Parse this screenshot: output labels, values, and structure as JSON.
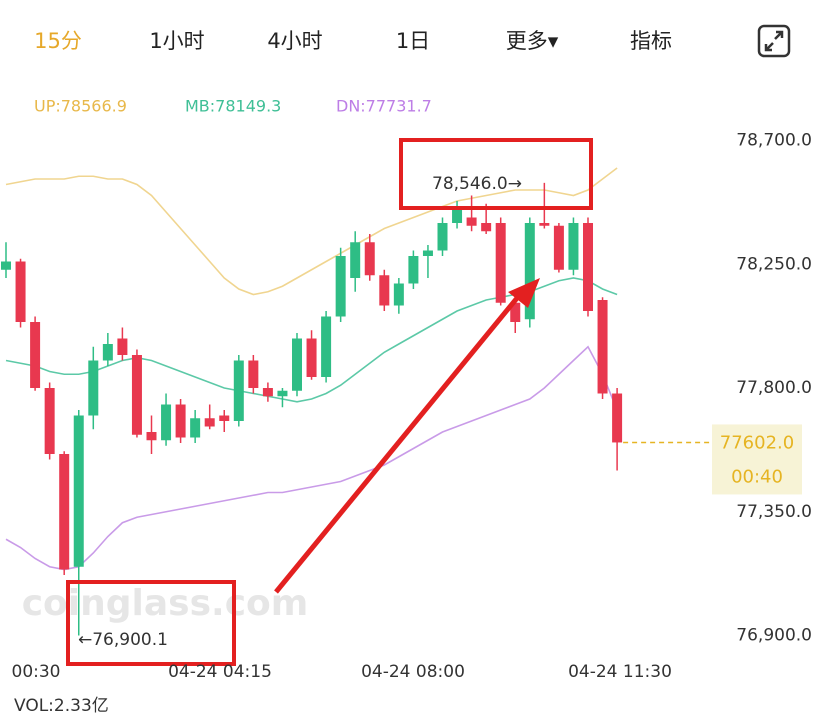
{
  "tabs": [
    "15分",
    "1小时",
    "4小时",
    "1日",
    "更多▾",
    "指标"
  ],
  "chart_data": {
    "type": "candlestick",
    "indicators": [
      {
        "label": "UP:78566.9",
        "color": "#e8b84a"
      },
      {
        "label": "MB:78149.3",
        "color": "#3fbf96"
      },
      {
        "label": "DN:77731.7",
        "color": "#bd7ee6"
      }
    ],
    "ylim": [
      76800,
      78800
    ],
    "yticks": [
      {
        "value": 78700,
        "label": "78,700.0"
      },
      {
        "value": 78250,
        "label": "78,250.0"
      },
      {
        "value": 77800,
        "label": "77,800.0"
      },
      {
        "value": 77350,
        "label": "77,350.0"
      },
      {
        "value": 76900,
        "label": "76,900.0"
      }
    ],
    "x_labels": [
      "00:30",
      "04-24 04:15",
      "04-24 08:00",
      "04-24 11:30"
    ],
    "up_color": "#2ebd85",
    "down_color": "#e8384f",
    "open": [
      78230,
      78260,
      78040,
      77800,
      77560,
      77150,
      77700,
      77900,
      77980,
      77920,
      77640,
      77610,
      77740,
      77620,
      77690,
      77700,
      77680,
      77900,
      77800,
      77770,
      77790,
      77980,
      77840,
      78060,
      78200,
      78330,
      78210,
      78100,
      78180,
      78280,
      78300,
      78400,
      78420,
      78400,
      78400,
      78110,
      78050,
      78400,
      78390,
      78230,
      78400,
      78120,
      77780
    ],
    "high": [
      78330,
      78270,
      78060,
      77820,
      77570,
      77720,
      77950,
      78000,
      78020,
      77940,
      77700,
      77780,
      77760,
      77720,
      77740,
      77720,
      77920,
      77920,
      77820,
      77800,
      78000,
      78010,
      78080,
      78310,
      78370,
      78360,
      78230,
      78200,
      78300,
      78320,
      78420,
      78480,
      78500,
      78470,
      78420,
      78150,
      78420,
      78546,
      78400,
      78420,
      78420,
      78130,
      77800
    ],
    "low": [
      78200,
      78020,
      77790,
      77540,
      77120,
      76900.1,
      77650,
      77880,
      77900,
      77620,
      77560,
      77590,
      77600,
      77600,
      77650,
      77640,
      77660,
      77780,
      77750,
      77730,
      77770,
      77830,
      77820,
      78040,
      78150,
      78190,
      78080,
      78070,
      78160,
      78200,
      78280,
      78380,
      78370,
      78360,
      78100,
      78000,
      78020,
      78380,
      78220,
      78210,
      78060,
      77760,
      77500
    ],
    "close": [
      78260,
      78040,
      77800,
      77560,
      77140,
      77700,
      77900,
      77960,
      77920,
      77630,
      77610,
      77740,
      77620,
      77690,
      77660,
      77680,
      77900,
      77800,
      77770,
      77790,
      77980,
      77840,
      78060,
      78280,
      78330,
      78210,
      78100,
      78180,
      78280,
      78300,
      78400,
      78460,
      78390,
      78370,
      78110,
      78040,
      78400,
      78390,
      78230,
      78400,
      78080,
      77780,
      77602
    ],
    "bands": [
      {
        "name": "UP",
        "color": "#f0d590",
        "values": [
          78540,
          78550,
          78560,
          78560,
          78560,
          78570,
          78570,
          78560,
          78560,
          78540,
          78500,
          78440,
          78380,
          78320,
          78260,
          78200,
          78160,
          78140,
          78150,
          78170,
          78200,
          78230,
          78260,
          78290,
          78320,
          78350,
          78380,
          78400,
          78420,
          78440,
          78460,
          78480,
          78490,
          78500,
          78510,
          78520,
          78520,
          78520,
          78510,
          78500,
          78520,
          78560,
          78600
        ]
      },
      {
        "name": "MB",
        "color": "#5cc9a7",
        "values": [
          77900,
          77890,
          77880,
          77860,
          77850,
          77850,
          77860,
          77880,
          77900,
          77910,
          77900,
          77880,
          77860,
          77840,
          77820,
          77800,
          77790,
          77780,
          77770,
          77760,
          77750,
          77760,
          77780,
          77810,
          77850,
          77890,
          77930,
          77960,
          77990,
          78020,
          78050,
          78080,
          78100,
          78120,
          78130,
          78140,
          78150,
          78170,
          78190,
          78200,
          78190,
          78160,
          78140
        ]
      },
      {
        "name": "DN",
        "color": "#c99be8",
        "values": [
          77250,
          77220,
          77180,
          77150,
          77140,
          77150,
          77200,
          77260,
          77310,
          77330,
          77340,
          77350,
          77360,
          77370,
          77380,
          77390,
          77400,
          77410,
          77420,
          77420,
          77430,
          77440,
          77450,
          77460,
          77480,
          77500,
          77520,
          77550,
          77580,
          77610,
          77640,
          77660,
          77680,
          77700,
          77720,
          77740,
          77760,
          77800,
          77850,
          77900,
          77950,
          77850,
          77720
        ]
      }
    ],
    "high_label": "78,546.0→",
    "low_label": "←76,900.1",
    "last_price": {
      "value": 77602,
      "label": "77602.0"
    },
    "countdown": "00:40",
    "volume": "VOL:2.33亿",
    "watermark": "coinglass.com"
  }
}
